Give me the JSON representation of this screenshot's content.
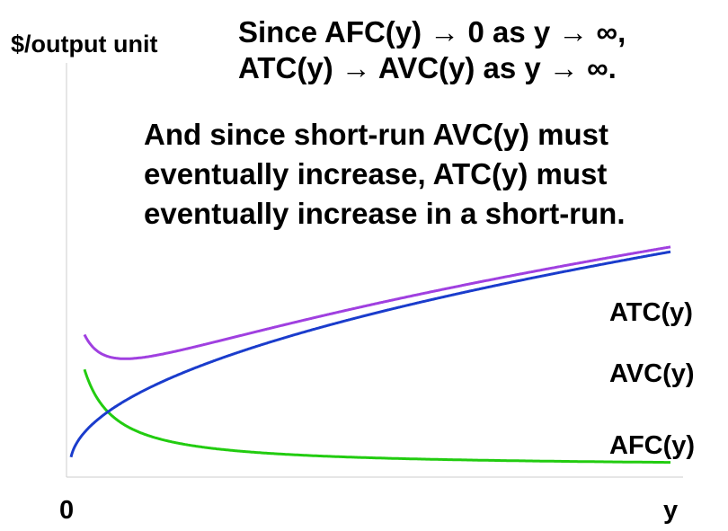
{
  "chart_data": {
    "type": "line",
    "title": "",
    "ylabel": "$/output unit",
    "xlabel": "y",
    "origin_label": "0",
    "xlim": [
      0,
      1
    ],
    "ylim": [
      0,
      1
    ],
    "grid": false,
    "notes": [
      "Since AFC(y) → 0 as y → ∞, ATC(y) → AVC(y) as y → ∞.",
      "And since short-run AVC(y) must eventually increase, ATC(y) must eventually increase in a short-run."
    ],
    "series": [
      {
        "name": "ATC(y)",
        "label": "ATC(y)",
        "color": "#a040e0"
      },
      {
        "name": "AVC(y)",
        "label": "AVC(y)",
        "color": "#1a3ccc"
      },
      {
        "name": "AFC(y)",
        "label": "AFC(y)",
        "color": "#22cc10"
      }
    ]
  },
  "text": {
    "note1_line1": "Since AFC(y) → 0 as y → ∞,",
    "note1_line2": "ATC(y) → AVC(y) as y → ∞.",
    "note2_line1": "And since short-run AVC(y) must",
    "note2_line2": "eventually increase, ATC(y) must",
    "note2_line3": "eventually increase in a short-run."
  }
}
